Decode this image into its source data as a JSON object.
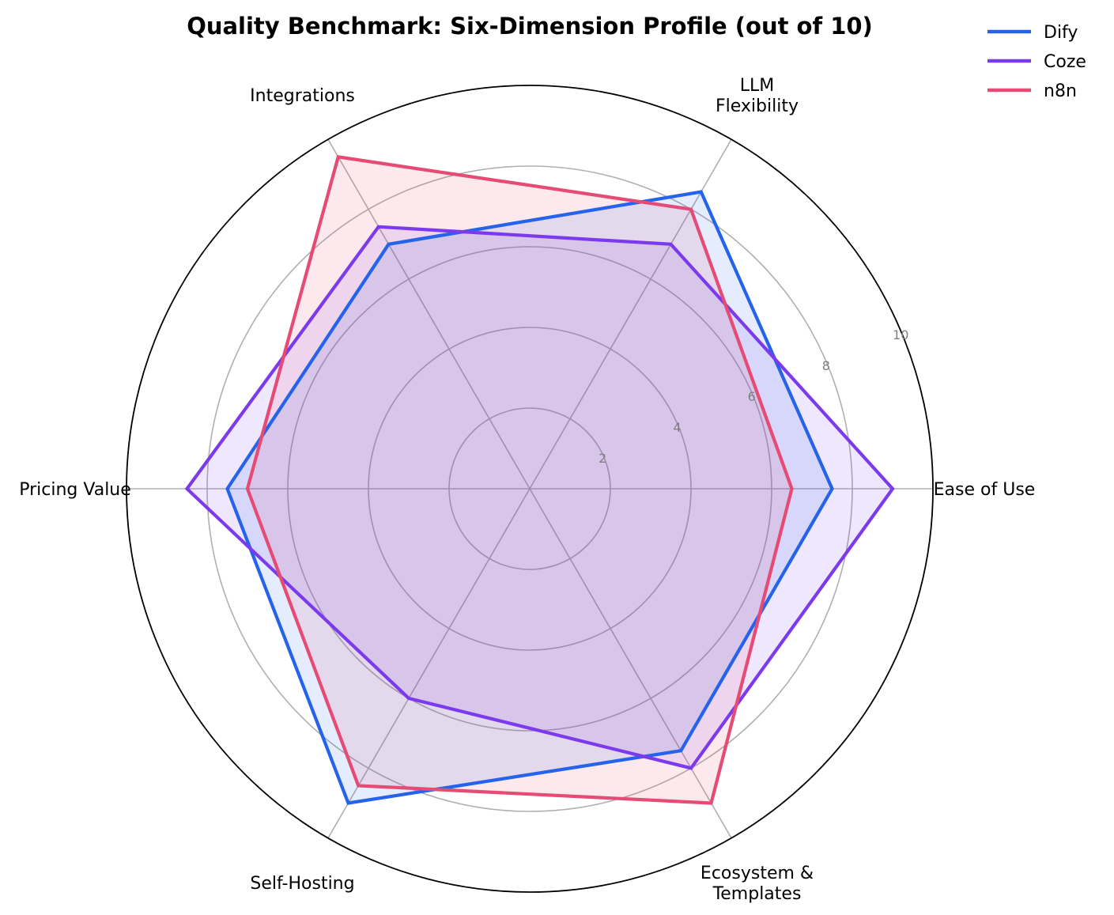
{
  "chart_data": {
    "type": "radar",
    "title": "Quality Benchmark: Six-Dimension Profile (out of 10)",
    "axes": [
      [
        "Ease of Use"
      ],
      [
        "LLM",
        "Flexibility"
      ],
      [
        "Integrations"
      ],
      [
        "Pricing Value"
      ],
      [
        "Self-Hosting"
      ],
      [
        "Ecosystem &",
        "Templates"
      ]
    ],
    "rlim": [
      0,
      10
    ],
    "rticks": [
      2,
      4,
      6,
      8,
      10
    ],
    "grid": true,
    "legend": "top-right",
    "series": [
      {
        "name": "Dify",
        "color": "#2563eb",
        "values": [
          7.5,
          8.5,
          7.0,
          7.5,
          9.0,
          7.5
        ]
      },
      {
        "name": "Coze",
        "color": "#7c3aed",
        "values": [
          9.0,
          7.0,
          7.5,
          8.5,
          6.0,
          8.0
        ]
      },
      {
        "name": "n8n",
        "color": "#e54b74",
        "values": [
          6.5,
          8.0,
          9.5,
          7.0,
          8.5,
          9.0
        ]
      }
    ]
  }
}
